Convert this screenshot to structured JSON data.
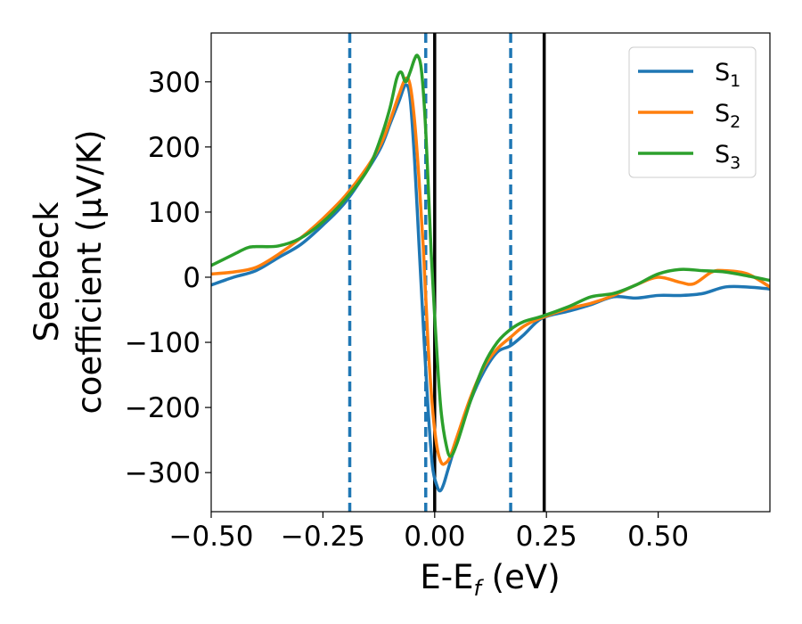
{
  "chart_data": {
    "type": "line",
    "xlabel": "E-E",
    "xlabel_sub": "f",
    "xlabel_unit": " (eV)",
    "ylabel_line1": "Seebeck",
    "ylabel_line2": "coefficient  (μV/K)",
    "xlim": [
      -0.5,
      0.75
    ],
    "ylim": [
      -360,
      375
    ],
    "xticks": [
      -0.5,
      -0.25,
      0.0,
      0.25,
      0.5
    ],
    "xtick_labels": [
      "−0.50",
      "−0.25",
      "0.00",
      "0.25",
      "0.50"
    ],
    "yticks": [
      -300,
      -200,
      -100,
      0,
      100,
      200,
      300
    ],
    "ytick_labels": [
      "−300",
      "−200",
      "−100",
      "0",
      "100",
      "200",
      "300"
    ],
    "grid": false,
    "legend_position": "top-right",
    "vlines_dashed": [
      -0.19,
      -0.02,
      0.17
    ],
    "vlines_solid": [
      0.0,
      0.245
    ],
    "colors": {
      "s1": "#1f77b4",
      "s2": "#ff7f0e",
      "s3": "#2ca02c",
      "dashed": "#1f77b4",
      "solid": "#000000"
    },
    "series": [
      {
        "name": "S",
        "sub": "1",
        "color_key": "s1",
        "points": [
          [
            -0.5,
            -12
          ],
          [
            -0.45,
            0
          ],
          [
            -0.4,
            10
          ],
          [
            -0.35,
            30
          ],
          [
            -0.3,
            50
          ],
          [
            -0.25,
            80
          ],
          [
            -0.2,
            115
          ],
          [
            -0.15,
            165
          ],
          [
            -0.12,
            200
          ],
          [
            -0.1,
            235
          ],
          [
            -0.08,
            270
          ],
          [
            -0.065,
            295
          ],
          [
            -0.055,
            275
          ],
          [
            -0.045,
            180
          ],
          [
            -0.035,
            50
          ],
          [
            -0.025,
            -80
          ],
          [
            -0.015,
            -200
          ],
          [
            -0.005,
            -290
          ],
          [
            0.005,
            -320
          ],
          [
            0.012,
            -328
          ],
          [
            0.02,
            -318
          ],
          [
            0.03,
            -295
          ],
          [
            0.05,
            -250
          ],
          [
            0.08,
            -190
          ],
          [
            0.11,
            -145
          ],
          [
            0.14,
            -115
          ],
          [
            0.17,
            -105
          ],
          [
            0.2,
            -88
          ],
          [
            0.24,
            -63
          ],
          [
            0.3,
            -52
          ],
          [
            0.35,
            -42
          ],
          [
            0.4,
            -30
          ],
          [
            0.45,
            -32
          ],
          [
            0.5,
            -28
          ],
          [
            0.55,
            -28
          ],
          [
            0.6,
            -25
          ],
          [
            0.65,
            -15
          ],
          [
            0.7,
            -15
          ],
          [
            0.75,
            -18
          ]
        ]
      },
      {
        "name": "S",
        "sub": "2",
        "color_key": "s2",
        "points": [
          [
            -0.5,
            5
          ],
          [
            -0.45,
            8
          ],
          [
            -0.4,
            15
          ],
          [
            -0.35,
            35
          ],
          [
            -0.3,
            60
          ],
          [
            -0.25,
            90
          ],
          [
            -0.2,
            125
          ],
          [
            -0.15,
            170
          ],
          [
            -0.12,
            205
          ],
          [
            -0.1,
            240
          ],
          [
            -0.08,
            280
          ],
          [
            -0.065,
            305
          ],
          [
            -0.055,
            295
          ],
          [
            -0.045,
            240
          ],
          [
            -0.035,
            150
          ],
          [
            -0.025,
            40
          ],
          [
            -0.015,
            -100
          ],
          [
            -0.005,
            -200
          ],
          [
            0.005,
            -260
          ],
          [
            0.015,
            -285
          ],
          [
            0.025,
            -285
          ],
          [
            0.035,
            -275
          ],
          [
            0.05,
            -245
          ],
          [
            0.08,
            -185
          ],
          [
            0.11,
            -138
          ],
          [
            0.14,
            -110
          ],
          [
            0.17,
            -92
          ],
          [
            0.2,
            -75
          ],
          [
            0.24,
            -62
          ],
          [
            0.3,
            -48
          ],
          [
            0.35,
            -40
          ],
          [
            0.4,
            -28
          ],
          [
            0.45,
            -12
          ],
          [
            0.5,
            0
          ],
          [
            0.55,
            -8
          ],
          [
            0.58,
            -10
          ],
          [
            0.62,
            8
          ],
          [
            0.65,
            10
          ],
          [
            0.7,
            5
          ],
          [
            0.75,
            -15
          ]
        ]
      },
      {
        "name": "S",
        "sub": "3",
        "color_key": "s3",
        "points": [
          [
            -0.5,
            18
          ],
          [
            -0.45,
            35
          ],
          [
            -0.42,
            45
          ],
          [
            -0.4,
            47
          ],
          [
            -0.35,
            48
          ],
          [
            -0.3,
            60
          ],
          [
            -0.25,
            85
          ],
          [
            -0.2,
            120
          ],
          [
            -0.15,
            165
          ],
          [
            -0.12,
            215
          ],
          [
            -0.1,
            260
          ],
          [
            -0.085,
            305
          ],
          [
            -0.075,
            315
          ],
          [
            -0.065,
            300
          ],
          [
            -0.055,
            315
          ],
          [
            -0.045,
            335
          ],
          [
            -0.038,
            340
          ],
          [
            -0.03,
            320
          ],
          [
            -0.022,
            250
          ],
          [
            -0.015,
            150
          ],
          [
            -0.008,
            40
          ],
          [
            0.0,
            -60
          ],
          [
            0.008,
            -150
          ],
          [
            0.015,
            -210
          ],
          [
            0.025,
            -255
          ],
          [
            0.035,
            -275
          ],
          [
            0.05,
            -255
          ],
          [
            0.08,
            -190
          ],
          [
            0.11,
            -135
          ],
          [
            0.14,
            -100
          ],
          [
            0.17,
            -80
          ],
          [
            0.2,
            -68
          ],
          [
            0.24,
            -60
          ],
          [
            0.3,
            -45
          ],
          [
            0.35,
            -30
          ],
          [
            0.4,
            -25
          ],
          [
            0.45,
            -12
          ],
          [
            0.5,
            5
          ],
          [
            0.55,
            12
          ],
          [
            0.6,
            10
          ],
          [
            0.65,
            8
          ],
          [
            0.7,
            2
          ],
          [
            0.75,
            -5
          ]
        ]
      }
    ]
  }
}
